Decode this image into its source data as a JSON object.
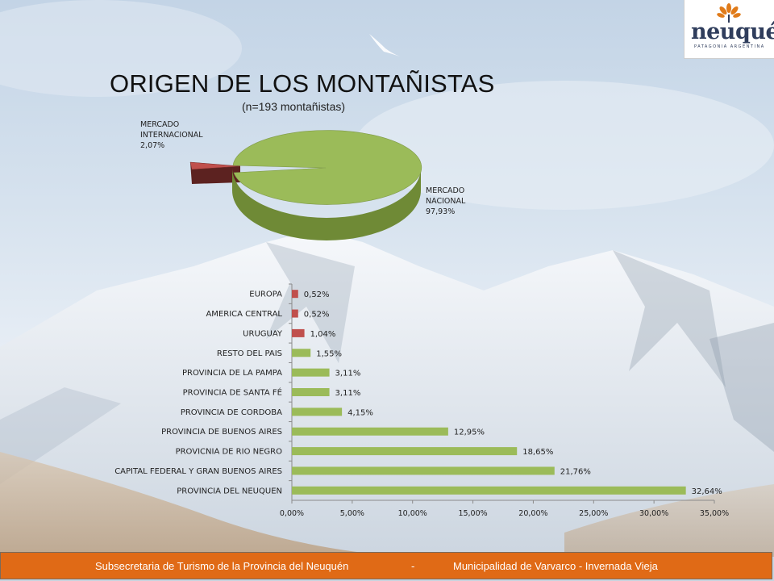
{
  "title": "ORIGEN DE LOS MONTAÑISTAS",
  "subtitle": "(n=193 montañistas)",
  "logo": {
    "text": "neuquén",
    "sub": "PATAGONIA ARGENTINA"
  },
  "footer": {
    "left": "Subsecretaria de Turismo de la Provincia del Neuquén",
    "sep": "-",
    "right": "Municipalidad de Varvarco - Invernada Vieja"
  },
  "colors": {
    "green": "#9bbb59",
    "red": "#c0504d",
    "dark_red": "#6e2a26",
    "footer": "#e06a16"
  },
  "chart_data": [
    {
      "type": "pie",
      "title": "ORIGEN DE LOS MONTAÑISTAS",
      "subtitle": "(n=193 montañistas)",
      "slices": [
        {
          "label_lines": [
            "MERCADO",
            "INTERNACIONAL"
          ],
          "value_label": "2,07%",
          "value": 2.07
        },
        {
          "label_lines": [
            "MERCADO",
            "NACIONAL"
          ],
          "value_label": "97,93%",
          "value": 97.93
        }
      ]
    },
    {
      "type": "bar",
      "orientation": "horizontal",
      "categories": [
        "EUROPA",
        "AMERICA CENTRAL",
        "URUGUAY",
        "RESTO DEL PAIS",
        "PROVINCIA DE LA PAMPA",
        "PROVINCIA DE SANTA FÉ",
        "PROVINCIA DE CORDOBA",
        "PROVINCIA DE BUENOS AIRES",
        "PROVICNIA DE RIO NEGRO",
        "CAPITAL FEDERAL Y GRAN BUENOS AIRES",
        "PROVINCIA DEL NEUQUEN"
      ],
      "values": [
        0.52,
        0.52,
        1.04,
        1.55,
        3.11,
        3.11,
        4.15,
        12.95,
        18.65,
        21.76,
        32.64
      ],
      "value_labels": [
        "0,52%",
        "0,52%",
        "1,04%",
        "1,55%",
        "3,11%",
        "3,11%",
        "4,15%",
        "12,95%",
        "18,65%",
        "21,76%",
        "32,64%"
      ],
      "bar_colors": [
        "red",
        "red",
        "red",
        "green",
        "green",
        "green",
        "green",
        "green",
        "green",
        "green",
        "green"
      ],
      "xlim": [
        0,
        35
      ],
      "xticks": [
        "0,00%",
        "5,00%",
        "10,00%",
        "15,00%",
        "20,00%",
        "25,00%",
        "30,00%",
        "35,00%"
      ],
      "grid": false
    }
  ]
}
